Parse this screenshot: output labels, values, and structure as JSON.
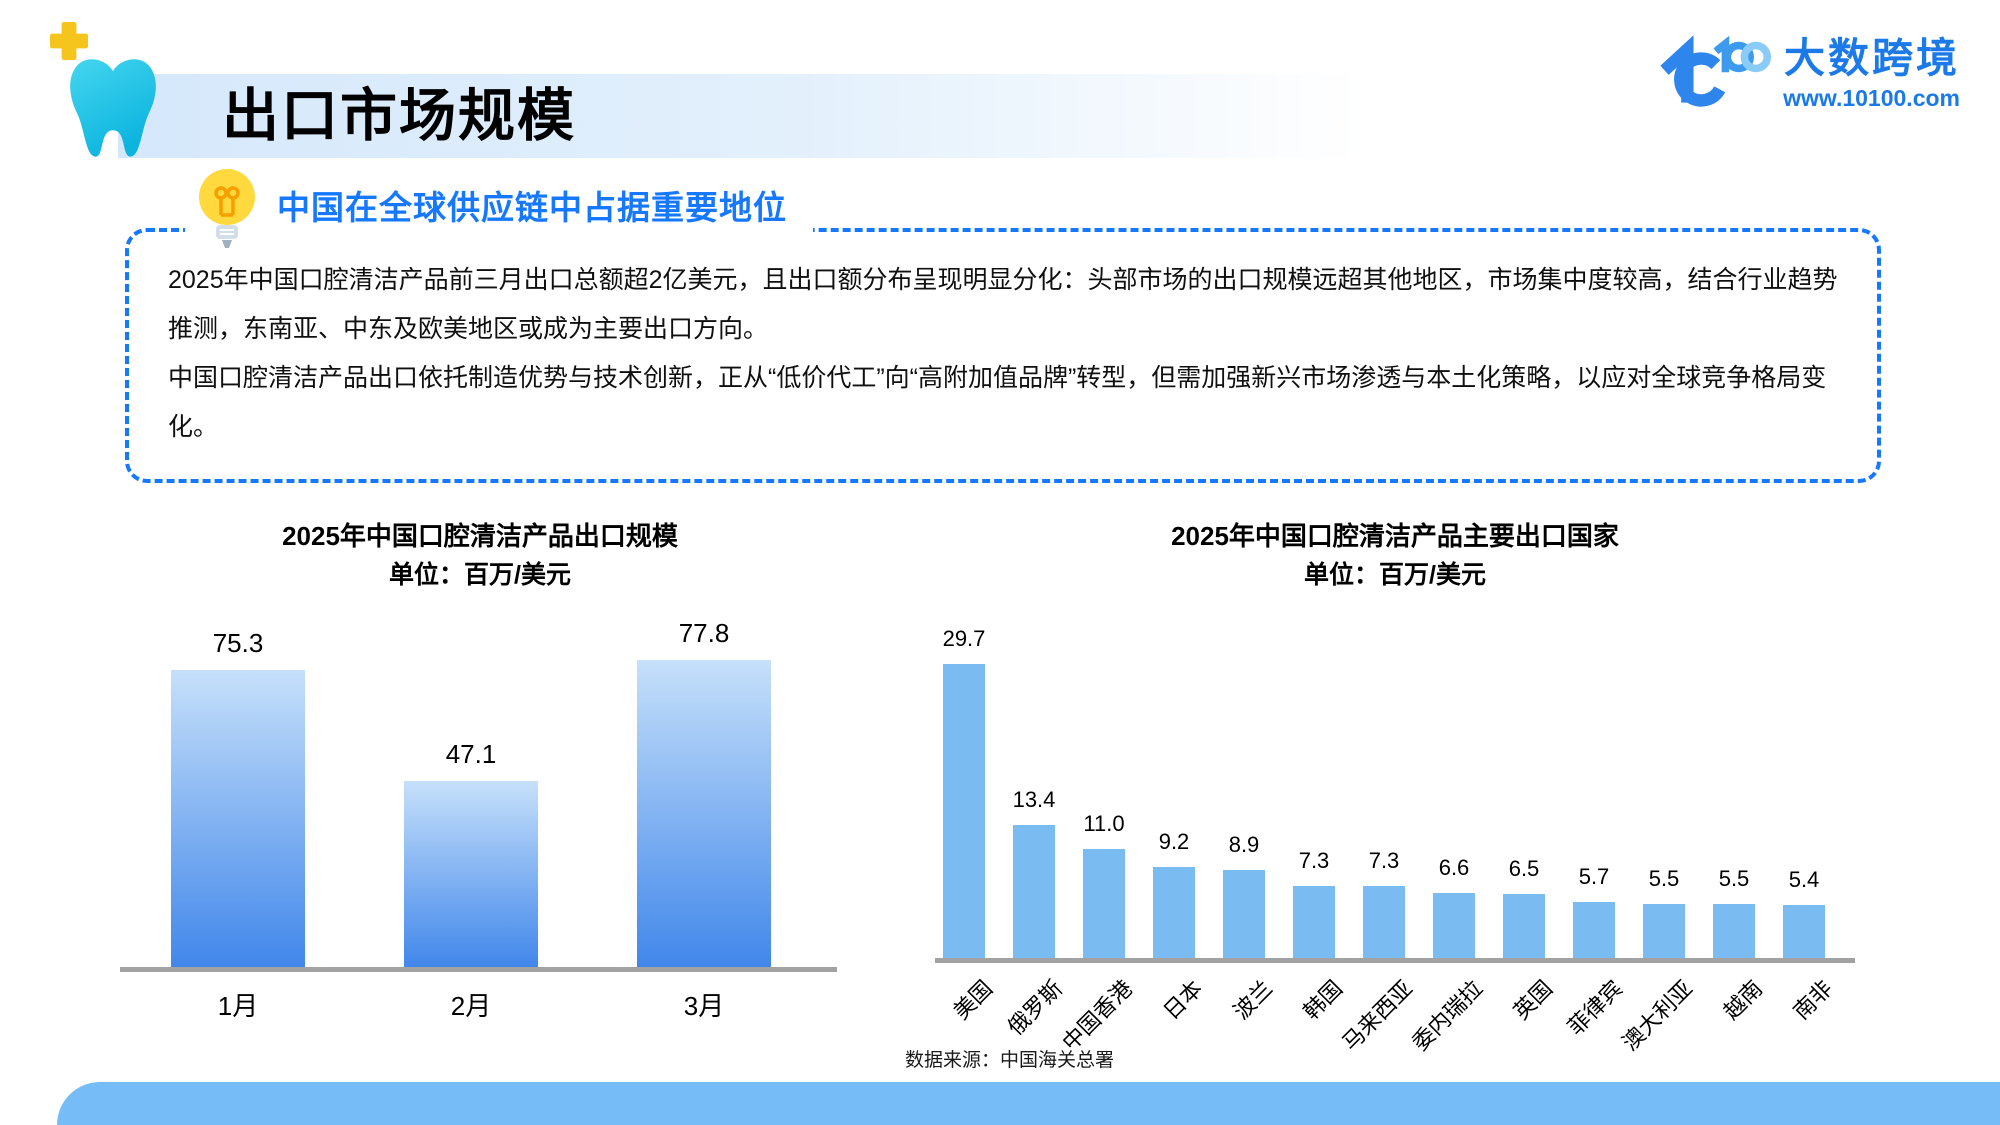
{
  "header": {
    "title": "出口市场规模",
    "logo": {
      "brand": "大数跨境",
      "url": "www.10100.com"
    }
  },
  "callout": {
    "heading": "中国在全球供应链中占据重要地位",
    "paragraphs": [
      "2025年中国口腔清洁产品前三月出口总额超2亿美元，且出口额分布呈现明显分化：头部市场的出口规模远超其他地区，市场集中度较高，结合行业趋势推测，东南亚、中东及欧美地区或成为主要出口方向。",
      "中国口腔清洁产品出口依托制造优势与技术创新，正从“低价代工”向“高附加值品牌”转型，但需加强新兴市场渗透与本土化策略，以应对全球竞争格局变化。"
    ]
  },
  "chart_data": [
    {
      "type": "bar",
      "title": "2025年中国口腔清洁产品出口规模",
      "subtitle": "单位：百万/美元",
      "categories": [
        "1月",
        "2月",
        "3月"
      ],
      "values": [
        75.3,
        47.1,
        77.8
      ],
      "ylim": [
        0,
        85
      ],
      "grid": false,
      "legend": "none",
      "bar_colors": [
        "#C6E0FA",
        "#4187EA"
      ],
      "bar_style": "vertical-gradient"
    },
    {
      "type": "bar",
      "title": "2025年中国口腔清洁产品主要出口国家",
      "subtitle": "单位：百万/美元",
      "categories": [
        "美国",
        "俄罗斯",
        "中国香港",
        "日本",
        "波兰",
        "韩国",
        "马来西亚",
        "委内瑞拉",
        "英国",
        "菲律宾",
        "澳大利亚",
        "越南",
        "南非"
      ],
      "values": [
        29.7,
        13.4,
        11.0,
        9.2,
        8.9,
        7.3,
        7.3,
        6.6,
        6.5,
        5.7,
        5.5,
        5.5,
        5.4
      ],
      "ylim": [
        0,
        32
      ],
      "grid": false,
      "legend": "none",
      "bar_colors": [
        "#7ABCF1"
      ],
      "bar_style": "solid"
    }
  ],
  "footer": {
    "source": "数据来源：中国海关总署"
  },
  "colors": {
    "accent_blue": "#1677FF",
    "brand_blue": "#1B7AE8",
    "tooth_cyan": "#18BCE0",
    "plus_yellow": "#F6C51D",
    "bulb_yellow": "#FFD93D",
    "axis_gray": "#A2A2A2",
    "bottom_bar_blue": "#76BDF8"
  }
}
